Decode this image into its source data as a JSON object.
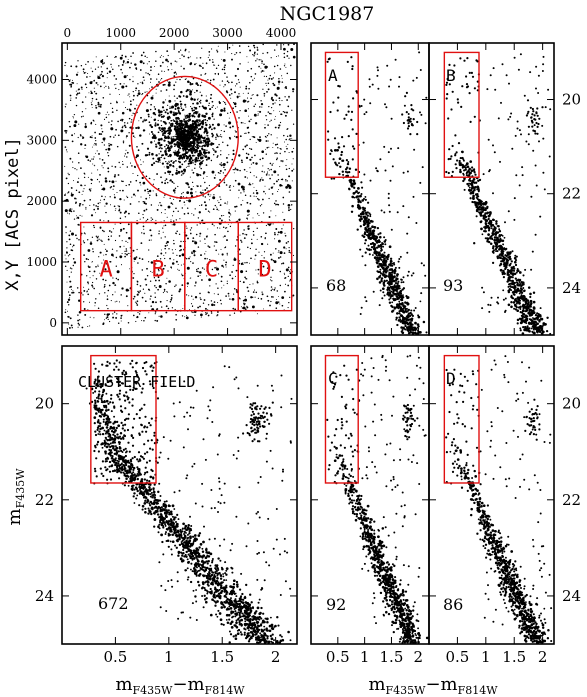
{
  "figure_title": "NGC1987",
  "colors": {
    "box": "#e01010",
    "points": "#000000"
  },
  "chart_data": [
    {
      "id": "image",
      "type": "scatter",
      "title": "",
      "xlabel": "",
      "ylabel": "X,Y [ACS pixel]",
      "xlim": [
        -100,
        4300
      ],
      "ylim": [
        -200,
        4600
      ],
      "xticks": [
        0,
        1000,
        2000,
        3000,
        4000
      ],
      "yticks": [
        0,
        1000,
        2000,
        3000,
        4000
      ],
      "density": "dense star field with a concentrated cluster core near (2200, 3050)",
      "cluster_circle": {
        "cx": 2200,
        "cy": 3050,
        "rx": 1000,
        "ry": 1000
      },
      "regions": [
        {
          "label": "A",
          "x": [
            250,
            1200
          ],
          "y": [
            200,
            1650
          ]
        },
        {
          "label": "B",
          "x": [
            1200,
            2200
          ],
          "y": [
            200,
            1650
          ]
        },
        {
          "label": "C",
          "x": [
            2200,
            3200
          ],
          "y": [
            200,
            1650
          ]
        },
        {
          "label": "D",
          "x": [
            3200,
            4200
          ],
          "y": [
            200,
            1650
          ]
        }
      ]
    },
    {
      "id": "cmd-cluster",
      "type": "scatter",
      "label": "CLUSTER FIELD",
      "count": "672",
      "xlabel": "mF435W−mF814W",
      "ylabel": "mF435W",
      "xlim": [
        0.0,
        2.2
      ],
      "ylim": [
        25.0,
        18.8
      ],
      "xticks": [
        "0.5",
        "1",
        "1.5",
        "2"
      ],
      "yticks": [
        "20",
        "22",
        "24"
      ],
      "box": {
        "x": [
          0.27,
          0.88
        ],
        "y": [
          19.0,
          21.65
        ]
      },
      "features": {
        "main_sequence": [
          [
            0.35,
            20.0
          ],
          [
            0.55,
            21.2
          ],
          [
            0.8,
            21.9
          ],
          [
            1.05,
            22.6
          ],
          [
            1.3,
            23.3
          ],
          [
            1.5,
            23.9
          ],
          [
            1.7,
            24.4
          ],
          [
            1.9,
            25.0
          ]
        ],
        "red_clump": {
          "x": 1.83,
          "y": 20.3
        },
        "field_points": "scattered field stars between the sequence and the clump"
      }
    },
    {
      "id": "cmd-A",
      "type": "scatter",
      "label": "A",
      "count": "68",
      "xlim": [
        0.0,
        2.2
      ],
      "ylim": [
        25.0,
        18.8
      ],
      "yticks": [
        "20",
        "22",
        "24"
      ],
      "box": {
        "x": [
          0.27,
          0.88
        ],
        "y": [
          19.0,
          21.65
        ]
      }
    },
    {
      "id": "cmd-B",
      "type": "scatter",
      "label": "B",
      "count": "93",
      "xlim": [
        0.0,
        2.2
      ],
      "ylim": [
        25.0,
        18.8
      ],
      "yticks": [
        "20",
        "22",
        "24"
      ],
      "box": {
        "x": [
          0.27,
          0.88
        ],
        "y": [
          19.0,
          21.65
        ]
      }
    },
    {
      "id": "cmd-C",
      "type": "scatter",
      "label": "C",
      "count": "92",
      "xlim": [
        0.0,
        2.2
      ],
      "ylim": [
        25.0,
        18.8
      ],
      "yticks": [
        "20",
        "22",
        "24"
      ],
      "box": {
        "x": [
          0.27,
          0.88
        ],
        "y": [
          19.0,
          21.65
        ]
      }
    },
    {
      "id": "cmd-D",
      "type": "scatter",
      "label": "D",
      "count": "86",
      "xlim": [
        0.0,
        2.2
      ],
      "ylim": [
        25.0,
        18.8
      ],
      "yticks": [
        "20",
        "22",
        "24"
      ],
      "box": {
        "x": [
          0.27,
          0.88
        ],
        "y": [
          19.0,
          21.65
        ]
      }
    }
  ],
  "shared_xlabel_right": "mF435W−mF814W",
  "shared_xticks_right": [
    "0.5",
    "1",
    "1.5",
    "2"
  ]
}
